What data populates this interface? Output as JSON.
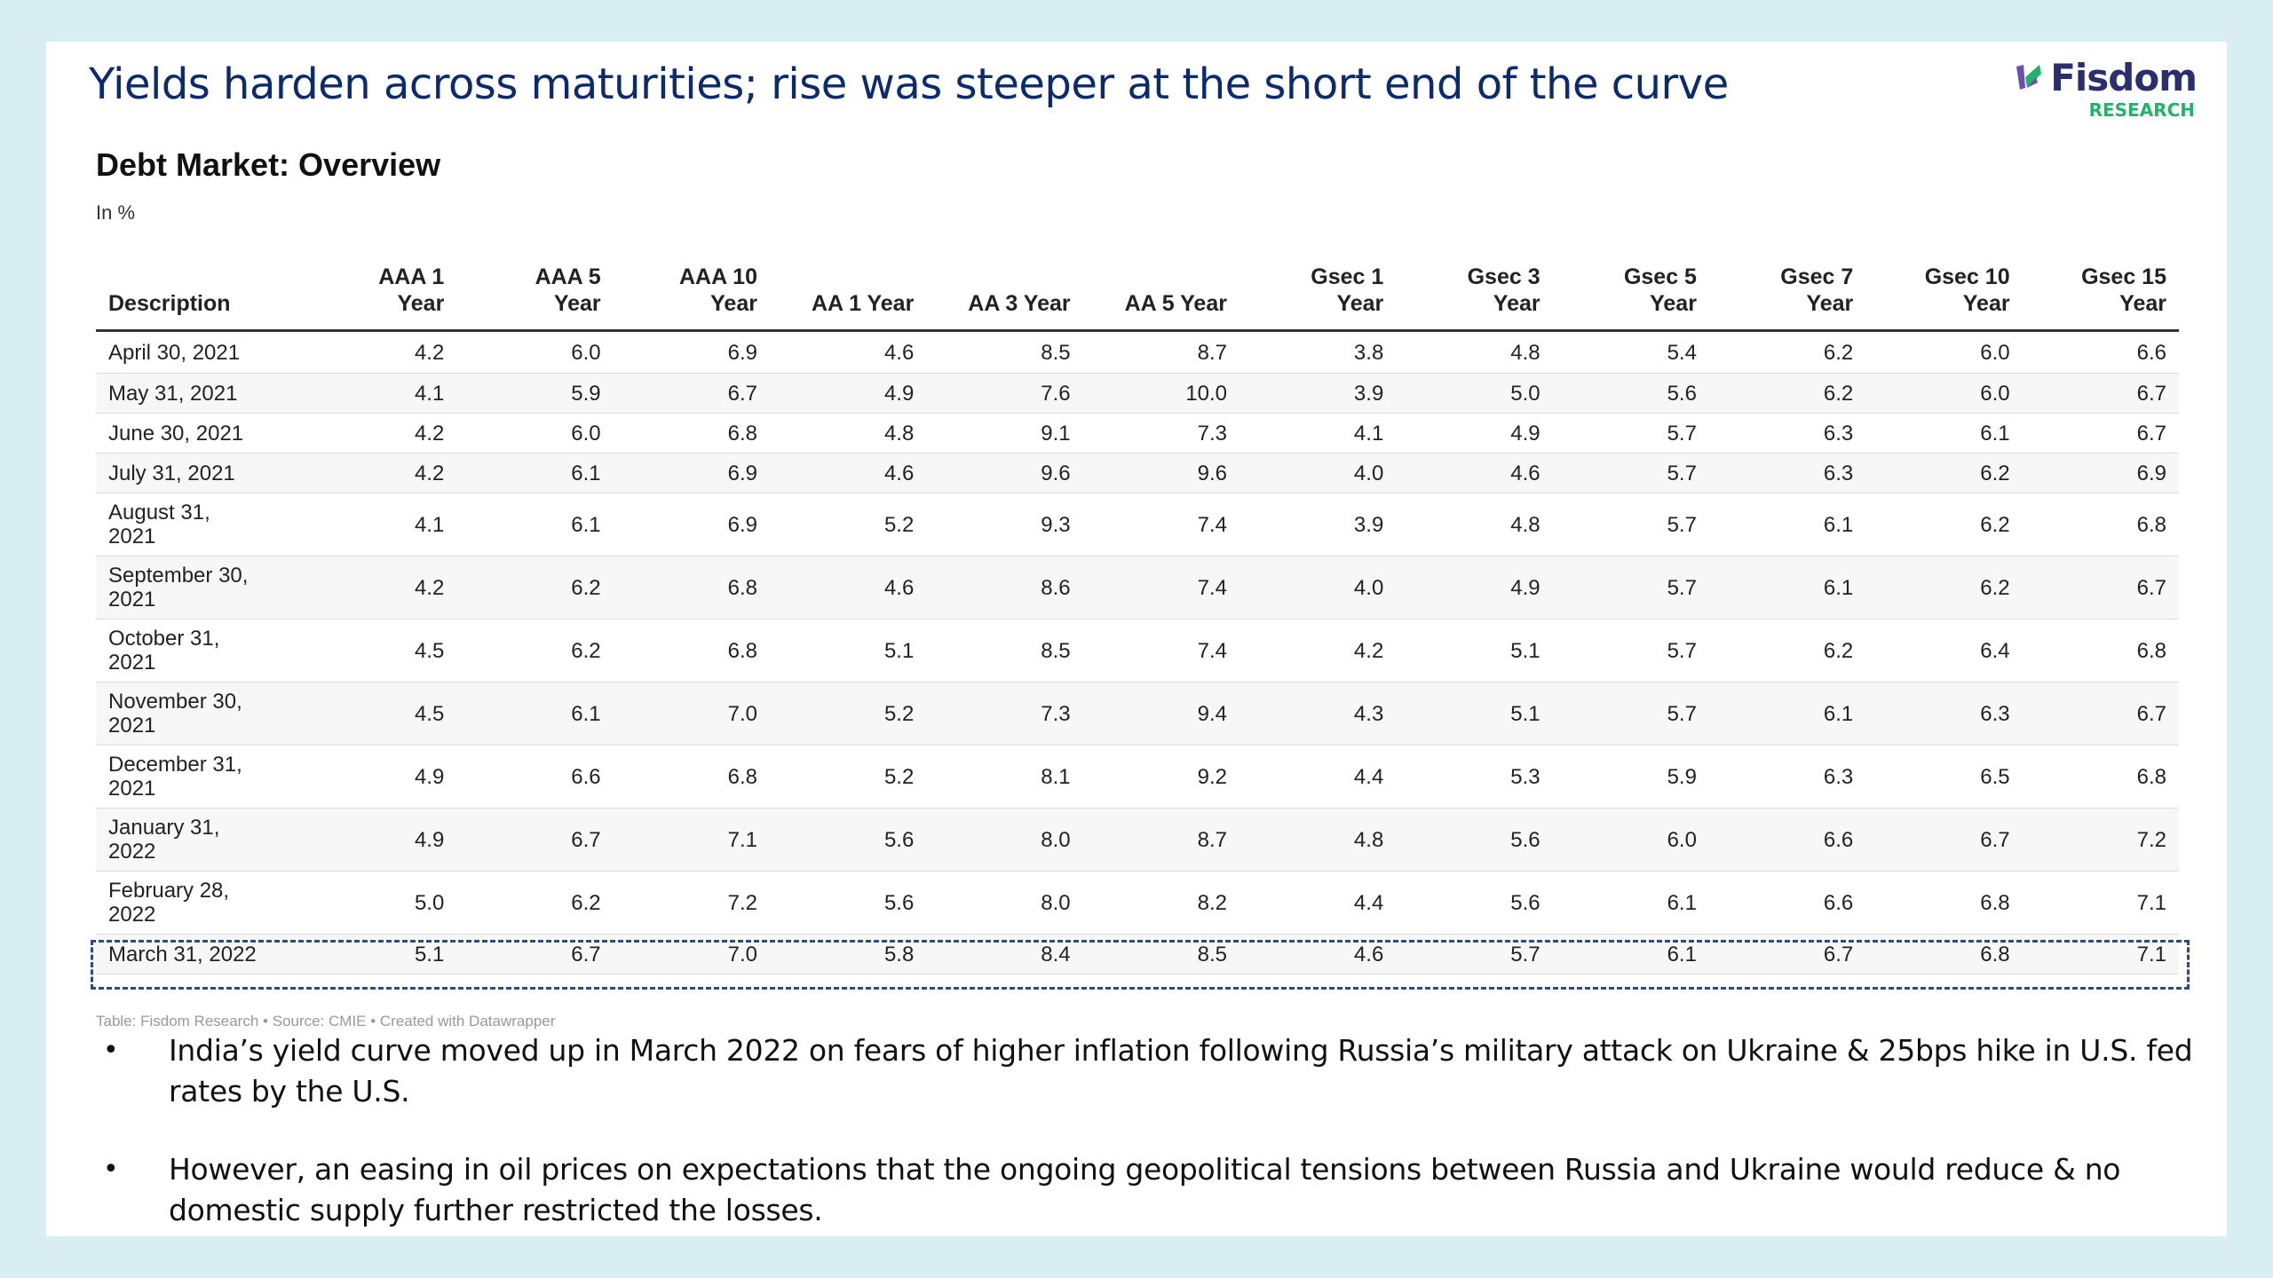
{
  "slide": {
    "title": "Yields harden across maturities; rise was steeper at the short end of the curve"
  },
  "logo": {
    "name": "Fisdom",
    "subtitle": "RESEARCH",
    "mark_icon": "fisdom-leaf-icon",
    "colors": {
      "mark_purple": "#6a4fb3",
      "mark_green": "#1fb36b",
      "word": "#2a2e6e",
      "sub": "#1fb36b"
    }
  },
  "table": {
    "title": "Debt Market: Overview",
    "subtitle": "In %",
    "headers": [
      [
        "Description"
      ],
      [
        "AAA 1",
        "Year"
      ],
      [
        "AAA 5",
        "Year"
      ],
      [
        "AAA 10",
        "Year"
      ],
      [
        "AA 1 Year"
      ],
      [
        "AA 3 Year"
      ],
      [
        "AA 5 Year"
      ],
      [
        "Gsec 1",
        "Year"
      ],
      [
        "Gsec 3",
        "Year"
      ],
      [
        "Gsec 5",
        "Year"
      ],
      [
        "Gsec 7",
        "Year"
      ],
      [
        "Gsec 10",
        "Year"
      ],
      [
        "Gsec 15",
        "Year"
      ]
    ],
    "rows": [
      {
        "date": [
          "April 30, 2021"
        ],
        "values": [
          "4.2",
          "6.0",
          "6.9",
          "4.6",
          "8.5",
          "8.7",
          "3.8",
          "4.8",
          "5.4",
          "6.2",
          "6.0",
          "6.6"
        ]
      },
      {
        "date": [
          "May 31, 2021"
        ],
        "values": [
          "4.1",
          "5.9",
          "6.7",
          "4.9",
          "7.6",
          "10.0",
          "3.9",
          "5.0",
          "5.6",
          "6.2",
          "6.0",
          "6.7"
        ]
      },
      {
        "date": [
          "June 30, 2021"
        ],
        "values": [
          "4.2",
          "6.0",
          "6.8",
          "4.8",
          "9.1",
          "7.3",
          "4.1",
          "4.9",
          "5.7",
          "6.3",
          "6.1",
          "6.7"
        ]
      },
      {
        "date": [
          "July 31, 2021"
        ],
        "values": [
          "4.2",
          "6.1",
          "6.9",
          "4.6",
          "9.6",
          "9.6",
          "4.0",
          "4.6",
          "5.7",
          "6.3",
          "6.2",
          "6.9"
        ]
      },
      {
        "date": [
          "August 31,",
          "2021"
        ],
        "values": [
          "4.1",
          "6.1",
          "6.9",
          "5.2",
          "9.3",
          "7.4",
          "3.9",
          "4.8",
          "5.7",
          "6.1",
          "6.2",
          "6.8"
        ]
      },
      {
        "date": [
          "September 30,",
          "2021"
        ],
        "values": [
          "4.2",
          "6.2",
          "6.8",
          "4.6",
          "8.6",
          "7.4",
          "4.0",
          "4.9",
          "5.7",
          "6.1",
          "6.2",
          "6.7"
        ]
      },
      {
        "date": [
          "October 31,",
          "2021"
        ],
        "values": [
          "4.5",
          "6.2",
          "6.8",
          "5.1",
          "8.5",
          "7.4",
          "4.2",
          "5.1",
          "5.7",
          "6.2",
          "6.4",
          "6.8"
        ]
      },
      {
        "date": [
          "November 30,",
          "2021"
        ],
        "values": [
          "4.5",
          "6.1",
          "7.0",
          "5.2",
          "7.3",
          "9.4",
          "4.3",
          "5.1",
          "5.7",
          "6.1",
          "6.3",
          "6.7"
        ]
      },
      {
        "date": [
          "December 31,",
          "2021"
        ],
        "values": [
          "4.9",
          "6.6",
          "6.8",
          "5.2",
          "8.1",
          "9.2",
          "4.4",
          "5.3",
          "5.9",
          "6.3",
          "6.5",
          "6.8"
        ]
      },
      {
        "date": [
          "January 31,",
          "2022"
        ],
        "values": [
          "4.9",
          "6.7",
          "7.1",
          "5.6",
          "8.0",
          "8.7",
          "4.8",
          "5.6",
          "6.0",
          "6.6",
          "6.7",
          "7.2"
        ]
      },
      {
        "date": [
          "February 28,",
          "2022"
        ],
        "values": [
          "5.0",
          "6.2",
          "7.2",
          "5.6",
          "8.0",
          "8.2",
          "4.4",
          "5.6",
          "6.1",
          "6.6",
          "6.8",
          "7.1"
        ]
      },
      {
        "date": [
          "March 31, 2022"
        ],
        "values": [
          "5.1",
          "6.7",
          "7.0",
          "5.8",
          "8.4",
          "8.5",
          "4.6",
          "5.7",
          "6.1",
          "6.7",
          "6.8",
          "7.1"
        ]
      }
    ],
    "highlighted_row": "March 31, 2022",
    "source": "Table: Fisdom Research • Source: CMIE • Created with Datawrapper"
  },
  "bullets": [
    "India’s yield curve moved up in March 2022 on fears of higher inflation following Russia’s military attack on Ukraine & 25bps hike in U.S. fed rates by the U.S.",
    "However, an easing in oil prices on expectations that the ongoing geopolitical tensions between Russia and Ukraine would reduce & no domestic supply further restricted the losses."
  ],
  "bullet_symbol": "•",
  "colors": {
    "background": "#d9eef3",
    "title": "#0b2a6f",
    "highlight_border": "#2e4a7f"
  }
}
